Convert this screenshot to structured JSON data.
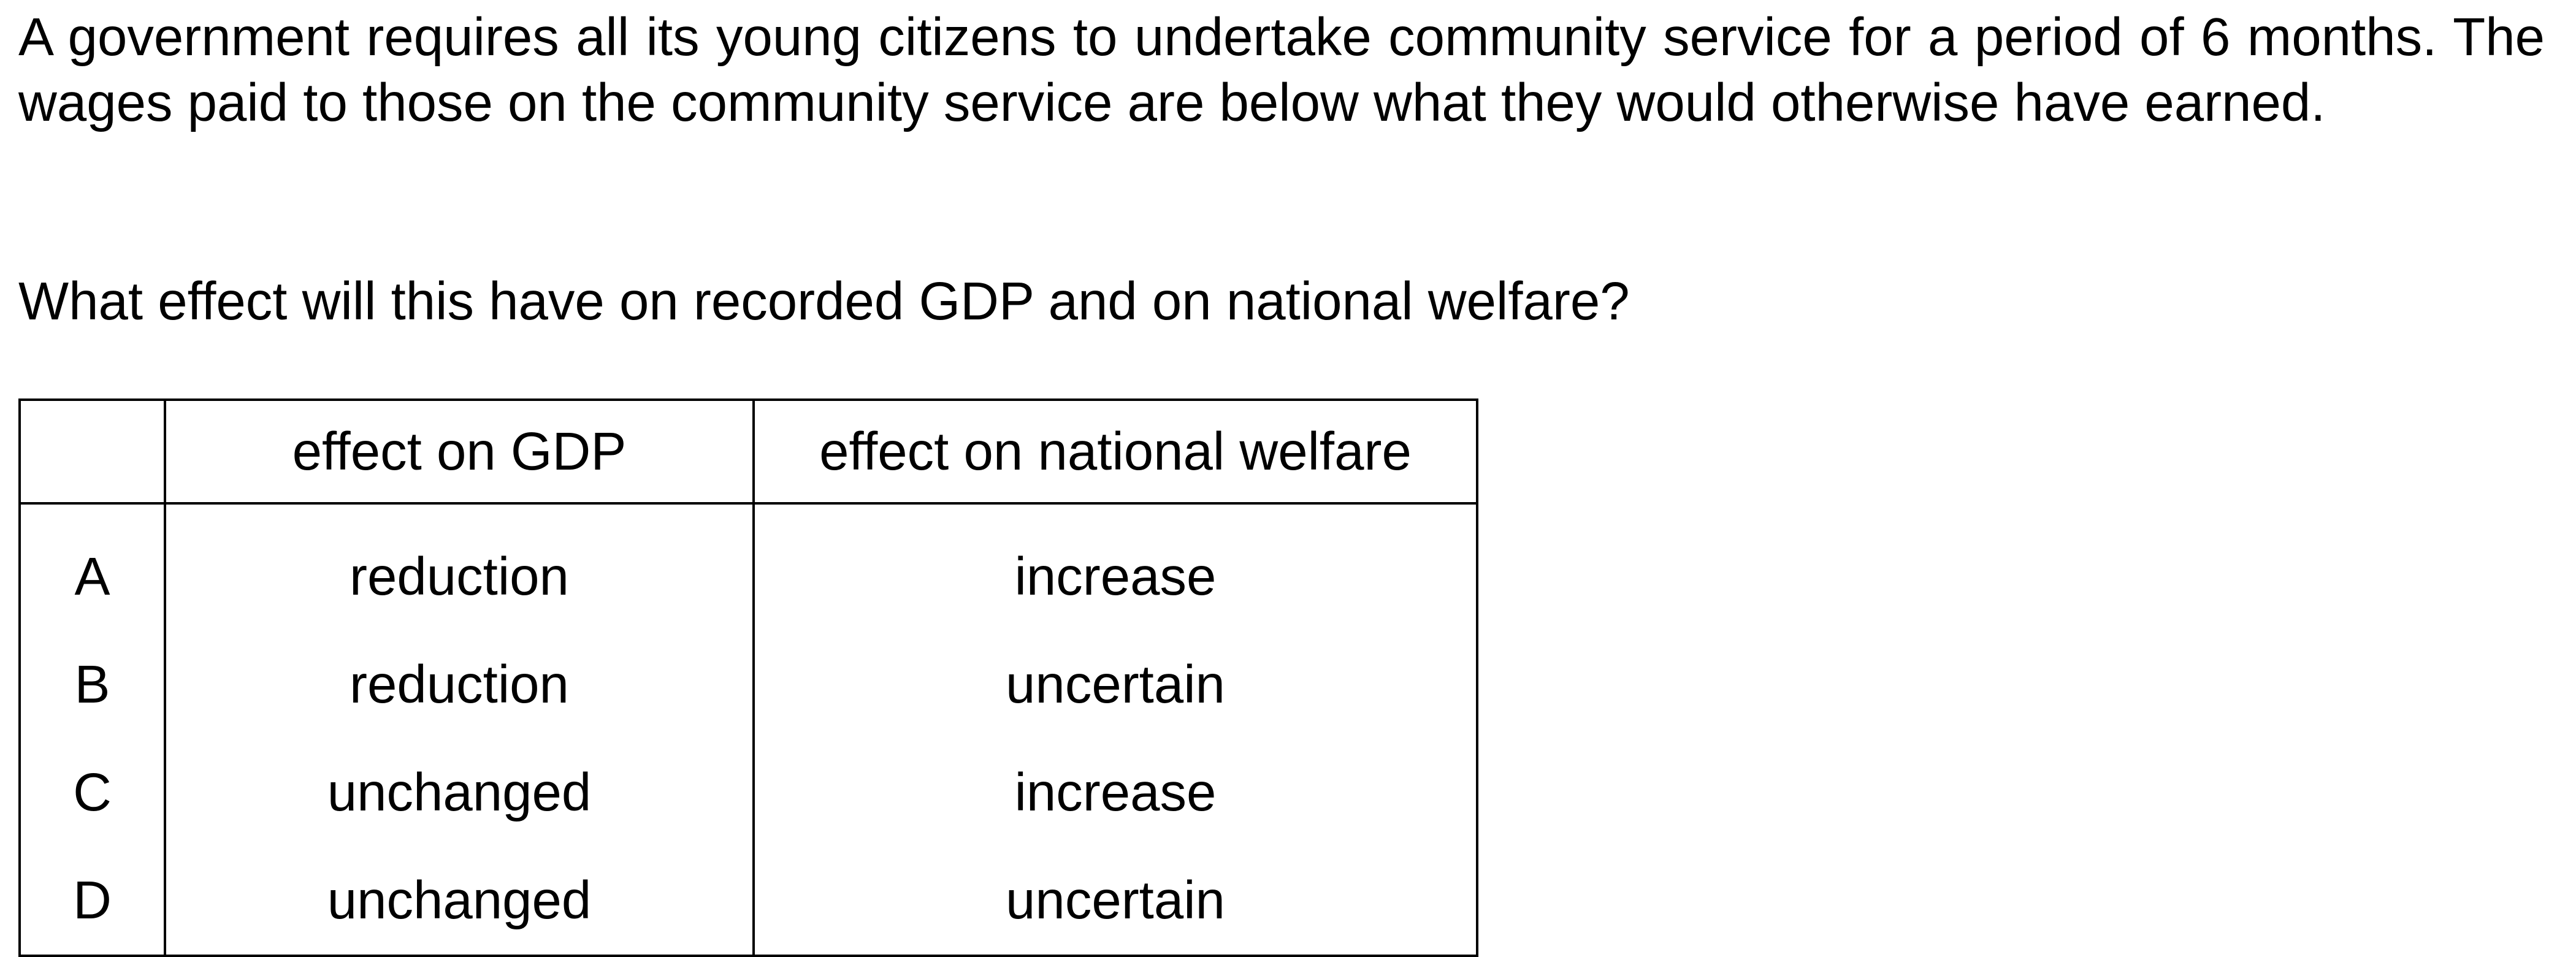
{
  "stem": "A government requires all its young citizens to undertake community service for a period of 6 months. The wages paid to those on the community service are below what they would otherwise have earned.",
  "question": "What effect will this have on recorded GDP and on national welfare?",
  "table": {
    "headers": [
      "",
      "effect on GDP",
      "effect on national welfare"
    ],
    "rows": [
      {
        "letter": "A",
        "gdp": "reduction",
        "welfare": "increase"
      },
      {
        "letter": "B",
        "gdp": "reduction",
        "welfare": "uncertain"
      },
      {
        "letter": "C",
        "gdp": "unchanged",
        "welfare": "increase"
      },
      {
        "letter": "D",
        "gdp": "unchanged",
        "welfare": "uncertain"
      }
    ]
  }
}
